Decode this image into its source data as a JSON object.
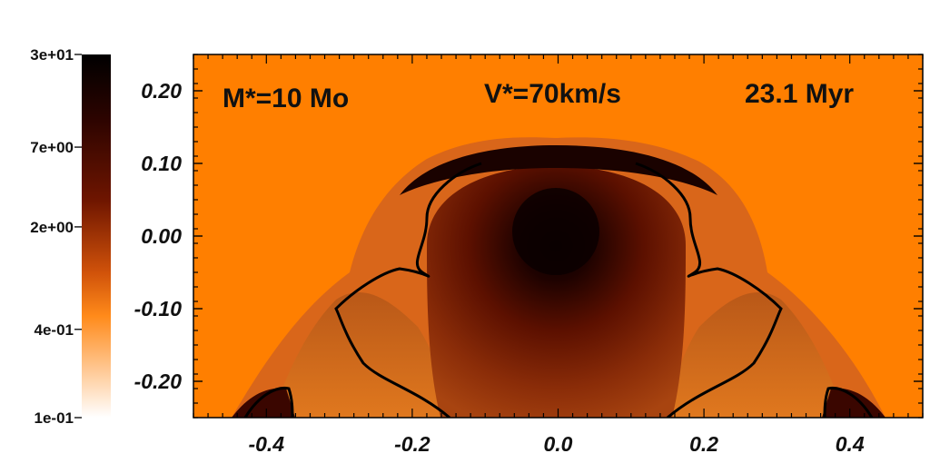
{
  "chart_data": {
    "type": "heatmap",
    "title": "",
    "xlabel": "",
    "ylabel": "",
    "xlim": [
      -0.5,
      0.5
    ],
    "ylim": [
      -0.25,
      0.25
    ],
    "x_ticks": [
      "-0.4",
      "-0.2",
      "0.0",
      "0.2",
      "0.4"
    ],
    "x_tick_values": [
      -0.4,
      -0.2,
      0.0,
      0.2,
      0.4
    ],
    "y_ticks": [
      "0.20",
      "0.10",
      "0.00",
      "-0.10",
      "-0.20"
    ],
    "y_tick_values": [
      0.2,
      0.1,
      0.0,
      -0.1,
      -0.2
    ],
    "colorbar": {
      "scale": "log",
      "ticks": [
        "3e+01",
        "7e+00",
        "2e+00",
        "4e-01",
        "1e-01"
      ],
      "tick_values": [
        30,
        7,
        2,
        0.4,
        0.1
      ],
      "colors": [
        "#000000",
        "#3a0500",
        "#7a1a00",
        "#d2520a",
        "#ff8000",
        "#ffffff"
      ]
    },
    "annotations": [
      "M*=10 Mo",
      "V*=70km/s",
      "23.1 Myr"
    ],
    "background_color": "#ff7f00",
    "contour_color": "#000000"
  }
}
